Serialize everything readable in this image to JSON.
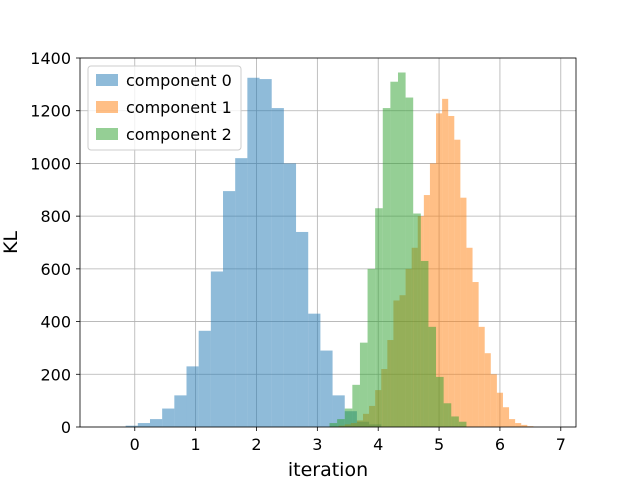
{
  "chart_data": {
    "type": "histogram",
    "title": "",
    "xlabel": "iteration",
    "ylabel": "KL",
    "xlim": [
      -0.9,
      7.25
    ],
    "ylim": [
      0,
      1400
    ],
    "xticks": [
      0,
      1,
      2,
      3,
      4,
      5,
      6,
      7
    ],
    "yticks": [
      0,
      200,
      400,
      600,
      800,
      1000,
      1200,
      1400
    ],
    "grid": true,
    "legend_position": "top-left",
    "alpha": 0.5,
    "series": [
      {
        "name": "component 0",
        "color": "#1f77b4",
        "bin_start": -0.15,
        "bin_width": 0.2,
        "counts": [
          5,
          15,
          30,
          70,
          120,
          230,
          365,
          590,
          895,
          1020,
          1325,
          1320,
          1210,
          1000,
          740,
          430,
          290,
          120,
          60,
          20,
          10
        ]
      },
      {
        "name": "component 1",
        "color": "#ff7f0e",
        "bin_start": 3.25,
        "bin_width": 0.1,
        "counts": [
          2,
          5,
          10,
          15,
          25,
          50,
          80,
          140,
          220,
          330,
          480,
          500,
          600,
          680,
          800,
          880,
          1000,
          1190,
          1245,
          1180,
          1090,
          870,
          680,
          550,
          380,
          280,
          200,
          130,
          75,
          30,
          15,
          8,
          3
        ]
      },
      {
        "name": "component 2",
        "color": "#2ca02c",
        "bin_start": 3.2,
        "bin_width": 0.125,
        "counts": [
          15,
          30,
          70,
          160,
          320,
          600,
          830,
          1210,
          1310,
          1345,
          1250,
          810,
          630,
          380,
          190,
          90,
          40,
          20
        ]
      }
    ]
  }
}
